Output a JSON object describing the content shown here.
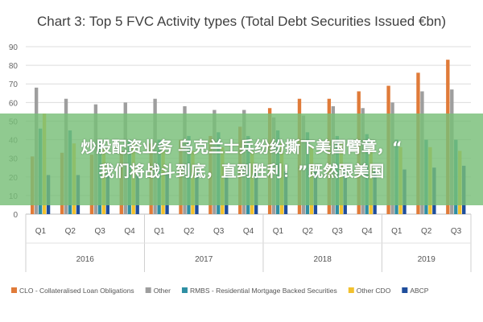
{
  "chart_data": {
    "type": "bar",
    "title": "Chart 3: Top 5 FVC Activity types (Total Debt Securities Issued €bn)",
    "xlabel": "",
    "ylabel": "",
    "ylim": [
      0,
      90
    ],
    "yticks": [
      0,
      10,
      20,
      30,
      40,
      50,
      60,
      70,
      80,
      90
    ],
    "grid": true,
    "legend_position": "bottom",
    "categories": [
      "Q1",
      "Q2",
      "Q3",
      "Q4",
      "Q1",
      "Q2",
      "Q3",
      "Q4",
      "Q1",
      "Q2",
      "Q3",
      "Q4",
      "Q1",
      "Q2",
      "Q3"
    ],
    "year_groups": [
      {
        "label": "2016",
        "count": 4
      },
      {
        "label": "2017",
        "count": 4
      },
      {
        "label": "2018",
        "count": 4
      },
      {
        "label": "2019",
        "count": 3
      }
    ],
    "series": [
      {
        "name": "CLO - Collateralised Loan Obligations",
        "color": "#e07b39",
        "values": [
          31,
          33,
          32,
          34,
          38,
          40,
          42,
          47,
          57,
          62,
          62,
          66,
          69,
          76,
          83
        ]
      },
      {
        "name": "Other",
        "color": "#9e9e9e",
        "values": [
          68,
          62,
          59,
          60,
          62,
          58,
          56,
          56,
          52,
          53,
          58,
          57,
          60,
          66,
          67
        ]
      },
      {
        "name": "RMBS - Residential Mortgage Backed Securities",
        "color": "#2e8fa3",
        "values": [
          46,
          45,
          40,
          40,
          40,
          42,
          44,
          42,
          45,
          44,
          42,
          43,
          40,
          40,
          40
        ]
      },
      {
        "name": "Other CDO",
        "color": "#f2c12e",
        "values": [
          54,
          38,
          35,
          38,
          36,
          34,
          36,
          34,
          38,
          36,
          38,
          36,
          36,
          36,
          34
        ]
      },
      {
        "name": "ABCP",
        "color": "#1f4e9c",
        "values": [
          21,
          21,
          22,
          21,
          22,
          22,
          22,
          23,
          23,
          23,
          24,
          24,
          24,
          25,
          26
        ]
      }
    ]
  },
  "banner": {
    "line1": "炒股配资业务 乌克兰士兵纷纷撕下美国臂章，“",
    "line2": "我们将战斗到底，直到胜利！”既然跟美国"
  }
}
